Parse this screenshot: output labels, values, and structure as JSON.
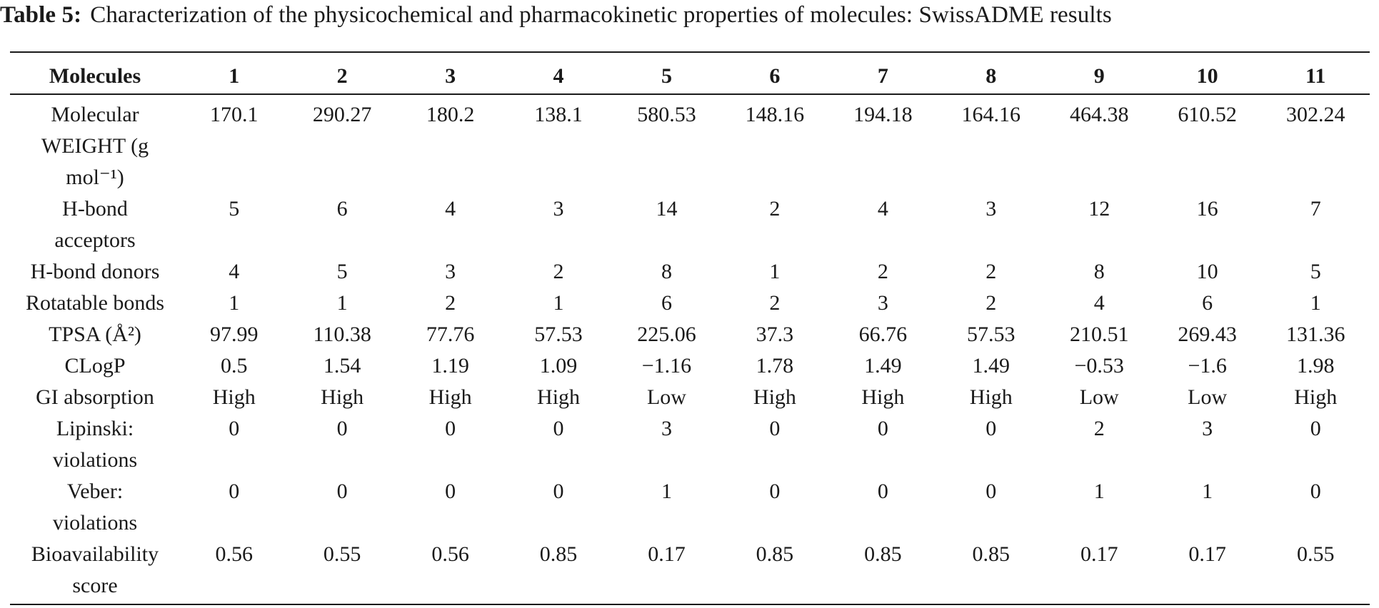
{
  "caption": {
    "label": "Table 5:",
    "text": "Characterization of the physicochemical and pharmacokinetic properties of molecules: SwissADME results"
  },
  "table": {
    "header": {
      "row_label": "Molecules",
      "columns": [
        "1",
        "2",
        "3",
        "4",
        "5",
        "6",
        "7",
        "8",
        "9",
        "10",
        "11"
      ]
    },
    "rows": [
      {
        "label_lines": [
          "Molecular",
          "WEIGHT (g",
          "mol⁻¹)"
        ],
        "values": [
          "170.1",
          "290.27",
          "180.2",
          "138.1",
          "580.53",
          "148.16",
          "194.18",
          "164.16",
          "464.38",
          "610.52",
          "302.24"
        ]
      },
      {
        "label_lines": [
          "H-bond",
          "acceptors"
        ],
        "values": [
          "5",
          "6",
          "4",
          "3",
          "14",
          "2",
          "4",
          "3",
          "12",
          "16",
          "7"
        ]
      },
      {
        "label_lines": [
          "H-bond donors"
        ],
        "values": [
          "4",
          "5",
          "3",
          "2",
          "8",
          "1",
          "2",
          "2",
          "8",
          "10",
          "5"
        ]
      },
      {
        "label_lines": [
          "Rotatable bonds"
        ],
        "values": [
          "1",
          "1",
          "2",
          "1",
          "6",
          "2",
          "3",
          "2",
          "4",
          "6",
          "1"
        ]
      },
      {
        "label_lines": [
          "TPSA (Å²)"
        ],
        "values": [
          "97.99",
          "110.38",
          "77.76",
          "57.53",
          "225.06",
          "37.3",
          "66.76",
          "57.53",
          "210.51",
          "269.43",
          "131.36"
        ]
      },
      {
        "label_lines": [
          "CLogP"
        ],
        "values": [
          "0.5",
          "1.54",
          "1.19",
          "1.09",
          "−1.16",
          "1.78",
          "1.49",
          "1.49",
          "−0.53",
          "−1.6",
          "1.98"
        ]
      },
      {
        "label_lines": [
          "GI absorption"
        ],
        "values": [
          "High",
          "High",
          "High",
          "High",
          "Low",
          "High",
          "High",
          "High",
          "Low",
          "Low",
          "High"
        ]
      },
      {
        "label_lines": [
          "Lipinski:",
          "violations"
        ],
        "values": [
          "0",
          "0",
          "0",
          "0",
          "3",
          "0",
          "0",
          "0",
          "2",
          "3",
          "0"
        ]
      },
      {
        "label_lines": [
          "Veber:",
          "violations"
        ],
        "values": [
          "0",
          "0",
          "0",
          "0",
          "1",
          "0",
          "0",
          "0",
          "1",
          "1",
          "0"
        ]
      },
      {
        "label_lines": [
          "Bioavailability",
          "score"
        ],
        "values": [
          "0.56",
          "0.55",
          "0.56",
          "0.85",
          "0.17",
          "0.85",
          "0.85",
          "0.85",
          "0.17",
          "0.17",
          "0.55"
        ]
      }
    ]
  }
}
